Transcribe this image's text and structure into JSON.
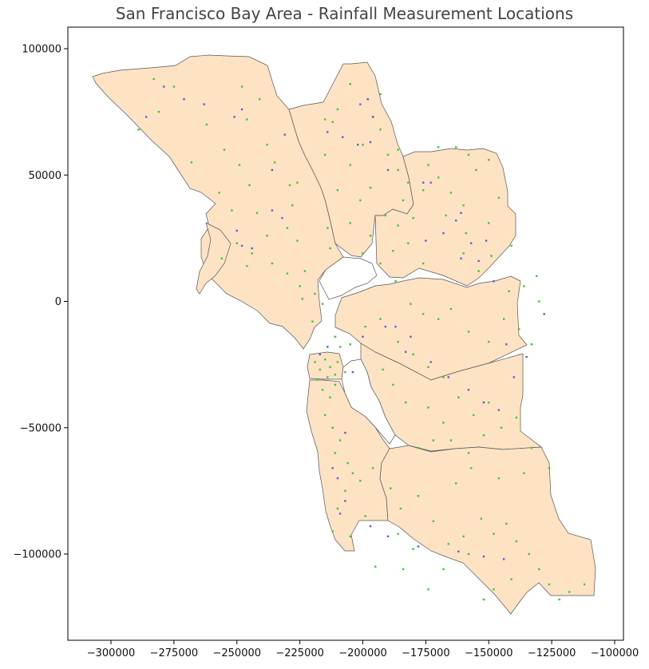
{
  "title": "San Francisco Bay Area - Rainfall Measurement Locations",
  "colors": {
    "land": "#fde3c4",
    "border": "#555555",
    "point_green": "#33cc33",
    "point_blue": "#5560e0"
  },
  "chart_data": {
    "type": "scatter",
    "title": "San Francisco Bay Area - Rainfall Measurement Locations",
    "xlabel": "",
    "ylabel": "",
    "xlim": [
      -316000,
      -97000
    ],
    "ylim": [
      -134000,
      108000
    ],
    "grid": false,
    "x_ticks": [
      -300000,
      -275000,
      -250000,
      -225000,
      -200000,
      -175000,
      -150000,
      -125000,
      -100000
    ],
    "y_ticks": [
      100000,
      50000,
      0,
      -50000,
      -100000
    ],
    "x_tick_labels": [
      "−300000",
      "−275000",
      "−250000",
      "−225000",
      "−200000",
      "−175000",
      "−150000",
      "−125000",
      "−100000"
    ],
    "y_tick_labels": [
      "100000",
      "50000",
      "0",
      "−50000",
      "−100000"
    ],
    "series": [
      {
        "color": "#33cc33",
        "points": [
          [
            -283000,
            88000
          ],
          [
            -275000,
            85000
          ],
          [
            -281000,
            75000
          ],
          [
            -289000,
            68000
          ],
          [
            -268000,
            55000
          ],
          [
            -262000,
            70000
          ],
          [
            -255000,
            60000
          ],
          [
            -248000,
            85000
          ],
          [
            -246000,
            72000
          ],
          [
            -241000,
            80000
          ],
          [
            -249000,
            54000
          ],
          [
            -245000,
            46000
          ],
          [
            -238000,
            62000
          ],
          [
            -235000,
            55000
          ],
          [
            -229000,
            46000
          ],
          [
            -242000,
            35000
          ],
          [
            -238000,
            26000
          ],
          [
            -228000,
            38000
          ],
          [
            -230000,
            29000
          ],
          [
            -226000,
            47000
          ],
          [
            -257000,
            43000
          ],
          [
            -252000,
            36000
          ],
          [
            -256000,
            17000
          ],
          [
            -250000,
            23000
          ],
          [
            -244000,
            19000
          ],
          [
            -246000,
            14000
          ],
          [
            -236000,
            15000
          ],
          [
            -230000,
            11000
          ],
          [
            -223000,
            12000
          ],
          [
            -225000,
            6000
          ],
          [
            -224000,
            1000
          ],
          [
            -219000,
            3000
          ],
          [
            -216000,
            -1000
          ],
          [
            -220000,
            -8000
          ],
          [
            -226000,
            24000
          ],
          [
            -214000,
            29000
          ],
          [
            -213000,
            21000
          ],
          [
            -210000,
            44000
          ],
          [
            -205000,
            54000
          ],
          [
            -200000,
            62000
          ],
          [
            -196000,
            73000
          ],
          [
            -193000,
            68000
          ],
          [
            -190000,
            58000
          ],
          [
            -186000,
            60000
          ],
          [
            -186000,
            52000
          ],
          [
            -182000,
            47000
          ],
          [
            -197000,
            45000
          ],
          [
            -201000,
            40000
          ],
          [
            -205000,
            31000
          ],
          [
            -197000,
            26000
          ],
          [
            -191000,
            34000
          ],
          [
            -186000,
            30000
          ],
          [
            -184000,
            40000
          ],
          [
            -180000,
            33000
          ],
          [
            -215000,
            72000
          ],
          [
            -215000,
            58000
          ],
          [
            -212000,
            71000
          ],
          [
            -210000,
            76000
          ],
          [
            -205000,
            86000
          ],
          [
            -198000,
            80000
          ],
          [
            -193000,
            82000
          ],
          [
            -174000,
            54000
          ],
          [
            -170000,
            49000
          ],
          [
            -165000,
            43000
          ],
          [
            -160000,
            38000
          ],
          [
            -155000,
            52000
          ],
          [
            -150000,
            56000
          ],
          [
            -146000,
            41000
          ],
          [
            -158000,
            58000
          ],
          [
            -163000,
            61000
          ],
          [
            -170000,
            61000
          ],
          [
            -176000,
            44000
          ],
          [
            -167000,
            34000
          ],
          [
            -159000,
            27000
          ],
          [
            -150000,
            31000
          ],
          [
            -160000,
            19000
          ],
          [
            -154000,
            12000
          ],
          [
            -149000,
            18000
          ],
          [
            -141000,
            22000
          ],
          [
            -176000,
            15000
          ],
          [
            -182000,
            23000
          ],
          [
            -188000,
            20000
          ],
          [
            -193000,
            15000
          ],
          [
            -200000,
            19000
          ],
          [
            -187000,
            8000
          ],
          [
            -181000,
            -1000
          ],
          [
            -176000,
            -5000
          ],
          [
            -170000,
            -7000
          ],
          [
            -165000,
            -3000
          ],
          [
            -158000,
            -12000
          ],
          [
            -150000,
            -16000
          ],
          [
            -144000,
            -7000
          ],
          [
            -138000,
            -11000
          ],
          [
            -133000,
            -17000
          ],
          [
            -142000,
            4000
          ],
          [
            -136000,
            6000
          ],
          [
            -130000,
            0
          ],
          [
            -131000,
            10000
          ],
          [
            -193000,
            -7000
          ],
          [
            -199000,
            -10000
          ],
          [
            -186000,
            -16000
          ],
          [
            -180000,
            -21000
          ],
          [
            -174000,
            -26000
          ],
          [
            -168000,
            -30000
          ],
          [
            -162000,
            -38000
          ],
          [
            -156000,
            -45000
          ],
          [
            -150000,
            -40000
          ],
          [
            -145000,
            -50000
          ],
          [
            -139000,
            -46000
          ],
          [
            -133000,
            -58000
          ],
          [
            -174000,
            -42000
          ],
          [
            -168000,
            -48000
          ],
          [
            -165000,
            -55000
          ],
          [
            -158000,
            -60000
          ],
          [
            -152000,
            -53000
          ],
          [
            -183000,
            -40000
          ],
          [
            -188000,
            -33000
          ],
          [
            -192000,
            -27000
          ],
          [
            -178000,
            -58000
          ],
          [
            -172000,
            -55000
          ],
          [
            -209000,
            -18000
          ],
          [
            -205000,
            -17000
          ],
          [
            -211000,
            -14000
          ],
          [
            -219000,
            -24000
          ],
          [
            -217000,
            -27000
          ],
          [
            -215000,
            -23000
          ],
          [
            -213000,
            -26000
          ],
          [
            -211000,
            -29000
          ],
          [
            -218000,
            -31000
          ],
          [
            -214000,
            -30000
          ],
          [
            -210000,
            -24000
          ],
          [
            -207000,
            -28000
          ],
          [
            -216000,
            -35000
          ],
          [
            -213000,
            -38000
          ],
          [
            -211000,
            -33000
          ],
          [
            -215000,
            -45000
          ],
          [
            -212000,
            -50000
          ],
          [
            -209000,
            -55000
          ],
          [
            -211000,
            -60000
          ],
          [
            -206000,
            -64000
          ],
          [
            -204000,
            -68000
          ],
          [
            -207000,
            -75000
          ],
          [
            -210000,
            -82000
          ],
          [
            -212000,
            -91000
          ],
          [
            -205000,
            -93000
          ],
          [
            -199000,
            -85000
          ],
          [
            -201000,
            -71000
          ],
          [
            -196000,
            -66000
          ],
          [
            -189000,
            -74000
          ],
          [
            -185000,
            -82000
          ],
          [
            -178000,
            -77000
          ],
          [
            -172000,
            -87000
          ],
          [
            -166000,
            -96000
          ],
          [
            -160000,
            -93000
          ],
          [
            -153000,
            -86000
          ],
          [
            -148000,
            -92000
          ],
          [
            -143000,
            -88000
          ],
          [
            -139000,
            -95000
          ],
          [
            -134000,
            -100000
          ],
          [
            -130000,
            -106000
          ],
          [
            -126000,
            -112000
          ],
          [
            -141000,
            -110000
          ],
          [
            -148000,
            -114000
          ],
          [
            -152000,
            -118000
          ],
          [
            -118000,
            -115000
          ],
          [
            -112000,
            -112000
          ],
          [
            -122000,
            -118000
          ],
          [
            -163000,
            -72000
          ],
          [
            -157000,
            -66000
          ],
          [
            -146000,
            -70000
          ],
          [
            -136000,
            -68000
          ],
          [
            -126000,
            -66000
          ],
          [
            -180000,
            -98000
          ],
          [
            -186000,
            -92000
          ],
          [
            -195000,
            -105000
          ],
          [
            -184000,
            -106000
          ],
          [
            -168000,
            -106000
          ],
          [
            -158000,
            -100000
          ],
          [
            -174000,
            -114000
          ]
        ]
      },
      {
        "color": "#5560e0",
        "points": [
          [
            -279000,
            85000
          ],
          [
            -271000,
            80000
          ],
          [
            -263000,
            78000
          ],
          [
            -251000,
            73000
          ],
          [
            -248000,
            76000
          ],
          [
            -286000,
            73000
          ],
          [
            -236000,
            52000
          ],
          [
            -236000,
            36000
          ],
          [
            -232000,
            33000
          ],
          [
            -250000,
            28000
          ],
          [
            -244000,
            21000
          ],
          [
            -248000,
            22000
          ],
          [
            -231000,
            66000
          ],
          [
            -214000,
            67000
          ],
          [
            -208000,
            65000
          ],
          [
            -202000,
            62000
          ],
          [
            -201000,
            78000
          ],
          [
            -198000,
            80000
          ],
          [
            -196000,
            73000
          ],
          [
            -197000,
            63000
          ],
          [
            -190000,
            52000
          ],
          [
            -176000,
            47000
          ],
          [
            -173000,
            47000
          ],
          [
            -163000,
            32000
          ],
          [
            -161000,
            35000
          ],
          [
            -168000,
            27000
          ],
          [
            -175000,
            24000
          ],
          [
            -157000,
            23000
          ],
          [
            -151000,
            24000
          ],
          [
            -154000,
            16000
          ],
          [
            -161000,
            17000
          ],
          [
            -148000,
            8000
          ],
          [
            -191000,
            -10000
          ],
          [
            -187000,
            -10000
          ],
          [
            -183000,
            -20000
          ],
          [
            -181000,
            -14000
          ],
          [
            -173000,
            -24000
          ],
          [
            -166000,
            -30000
          ],
          [
            -158000,
            -35000
          ],
          [
            -152000,
            -40000
          ],
          [
            -146000,
            -43000
          ],
          [
            -143000,
            -17000
          ],
          [
            -140000,
            -30000
          ],
          [
            -135000,
            -22000
          ],
          [
            -128000,
            -5000
          ],
          [
            -200000,
            -14000
          ],
          [
            -214000,
            -18000
          ],
          [
            -217000,
            -21000
          ],
          [
            -204000,
            -28000
          ],
          [
            -207000,
            -52000
          ],
          [
            -212000,
            -66000
          ],
          [
            -210000,
            -70000
          ],
          [
            -207000,
            -79000
          ],
          [
            -209000,
            -84000
          ],
          [
            -197000,
            -89000
          ],
          [
            -190000,
            -93000
          ],
          [
            -178000,
            -97000
          ],
          [
            -162000,
            -99000
          ],
          [
            -152000,
            -101000
          ],
          [
            -144000,
            -102000
          ]
        ]
      }
    ]
  }
}
